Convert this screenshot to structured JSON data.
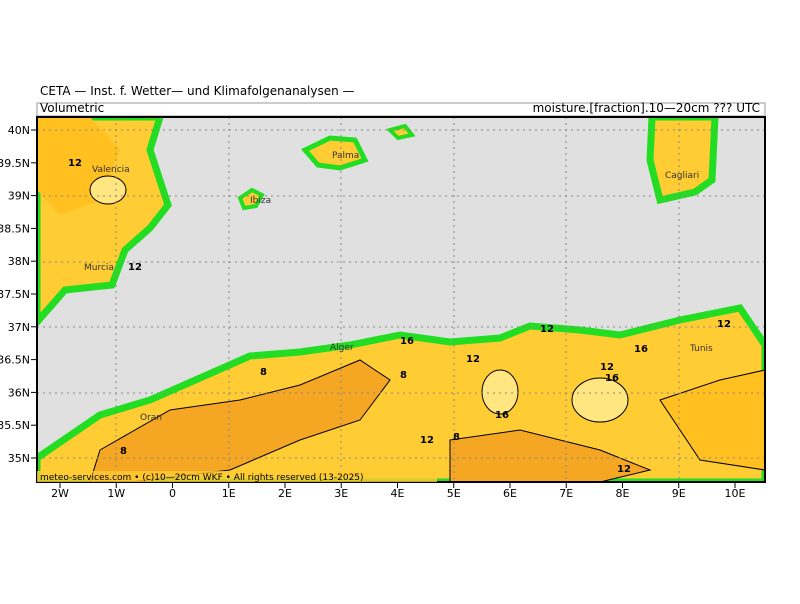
{
  "header": {
    "title": "CETA — Inst. f. Wetter— und Klimafolgenanalysen —",
    "left": "Volumetric",
    "right": "moisture.[fraction].10—20cm ??? UTC"
  },
  "axes": {
    "lat": [
      "40N",
      "39.5N",
      "39N",
      "38.5N",
      "38N",
      "37.5N",
      "37N",
      "36.5N",
      "36N",
      "35.5N",
      "35N"
    ],
    "lon": [
      "2W",
      "1W",
      "0",
      "1E",
      "2E",
      "3E",
      "4E",
      "5E",
      "6E",
      "7E",
      "8E",
      "9E",
      "10E"
    ]
  },
  "places": [
    "Valencia",
    "Murcia",
    "Ibiza",
    "Palma",
    "Cagliari",
    "Tunis",
    "Oran",
    "Alger"
  ],
  "contour_labels": [
    "12",
    "12",
    "16",
    "8",
    "8",
    "12",
    "12",
    "8",
    "16",
    "12",
    "16",
    "12",
    "12",
    "16",
    "8",
    "12"
  ],
  "footer": "meteo-services.com • (c)10—20cm WKF • All rights reserved (13-2025)"
}
